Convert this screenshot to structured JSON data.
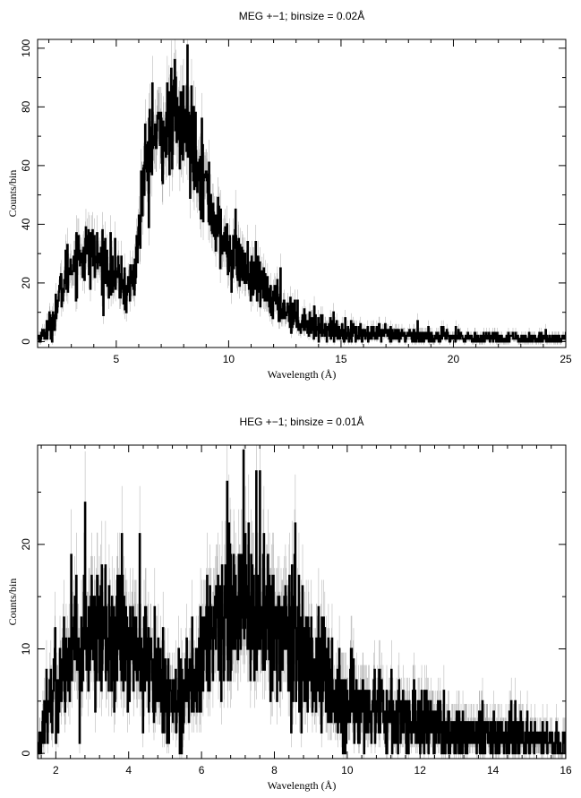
{
  "chart_data": [
    {
      "type": "line",
      "title": "MEG +−1; binsize = 0.02Å",
      "xlabel": "Wavelength (Å)",
      "ylabel": "Counts/bin",
      "xlim": [
        1.5,
        25
      ],
      "ylim": [
        -2,
        103
      ],
      "x_ticks": [
        5,
        10,
        15,
        20,
        25
      ],
      "y_ticks": [
        0,
        20,
        40,
        60,
        80,
        100
      ],
      "grid": false,
      "series": [
        {
          "color": "#000000",
          "error_color": "#aaaaaa",
          "binsize": 0.02,
          "envelope": [
            [
              1.5,
              1
            ],
            [
              1.8,
              3
            ],
            [
              2.0,
              5
            ],
            [
              2.2,
              8
            ],
            [
              2.5,
              16
            ],
            [
              2.8,
              24
            ],
            [
              3.2,
              29
            ],
            [
              3.6,
              31
            ],
            [
              4.0,
              29
            ],
            [
              4.4,
              27
            ],
            [
              4.8,
              24
            ],
            [
              5.2,
              20
            ],
            [
              5.5,
              17
            ],
            [
              5.8,
              23
            ],
            [
              6.0,
              37
            ],
            [
              6.2,
              55
            ],
            [
              6.5,
              66
            ],
            [
              7.0,
              71
            ],
            [
              7.5,
              74
            ],
            [
              8.0,
              73
            ],
            [
              8.5,
              68
            ],
            [
              9.0,
              52
            ],
            [
              9.5,
              38
            ],
            [
              10.0,
              30
            ],
            [
              10.5,
              27
            ],
            [
              11.0,
              22
            ],
            [
              11.5,
              18
            ],
            [
              12.0,
              14
            ],
            [
              12.5,
              11
            ],
            [
              13.0,
              8
            ],
            [
              14.0,
              5
            ],
            [
              15.0,
              3.5
            ],
            [
              16.0,
              2.5
            ],
            [
              18.0,
              2
            ],
            [
              20.0,
              1.5
            ],
            [
              22.0,
              1.2
            ],
            [
              25.0,
              1
            ]
          ],
          "peaks": [
            {
              "x": 7.6,
              "y": 96
            },
            {
              "x": 8.15,
              "y": 101
            },
            {
              "x": 6.6,
              "y": 88
            },
            {
              "x": 3.9,
              "y": 37
            },
            {
              "x": 10.3,
              "y": 45
            },
            {
              "x": 12.3,
              "y": 25
            },
            {
              "x": 18.4,
              "y": 7
            }
          ]
        }
      ]
    },
    {
      "type": "line",
      "title": "HEG +−1; binsize = 0.01Å",
      "xlabel": "Wavelength (Å)",
      "ylabel": "Counts/bin",
      "xlim": [
        1.5,
        16
      ],
      "ylim": [
        -0.5,
        29.5
      ],
      "x_ticks": [
        2,
        4,
        6,
        8,
        10,
        12,
        14,
        16
      ],
      "y_ticks": [
        0,
        10,
        20
      ],
      "grid": false,
      "series": [
        {
          "color": "#000000",
          "error_color": "#aaaaaa",
          "binsize": 0.01,
          "envelope": [
            [
              1.5,
              0.5
            ],
            [
              1.7,
              3
            ],
            [
              2.0,
              7
            ],
            [
              2.4,
              10
            ],
            [
              3.0,
              11.5
            ],
            [
              3.5,
              11.5
            ],
            [
              4.0,
              10
            ],
            [
              4.5,
              8
            ],
            [
              5.0,
              6
            ],
            [
              5.4,
              5
            ],
            [
              5.8,
              8
            ],
            [
              6.2,
              11
            ],
            [
              6.8,
              13
            ],
            [
              7.2,
              14
            ],
            [
              7.6,
              13
            ],
            [
              8.0,
              12
            ],
            [
              8.6,
              11
            ],
            [
              9.0,
              9
            ],
            [
              9.5,
              6.5
            ],
            [
              10.0,
              5
            ],
            [
              11.0,
              3.8
            ],
            [
              12.0,
              2.8
            ],
            [
              13.0,
              2
            ],
            [
              14.0,
              1.6
            ],
            [
              15.0,
              1.3
            ],
            [
              16.0,
              1.1
            ]
          ],
          "peaks": [
            {
              "x": 2.8,
              "y": 24
            },
            {
              "x": 4.3,
              "y": 21
            },
            {
              "x": 7.15,
              "y": 29
            },
            {
              "x": 6.7,
              "y": 26
            },
            {
              "x": 7.5,
              "y": 27
            },
            {
              "x": 9.3,
              "y": 13
            },
            {
              "x": 14.5,
              "y": 5
            }
          ]
        }
      ]
    }
  ]
}
